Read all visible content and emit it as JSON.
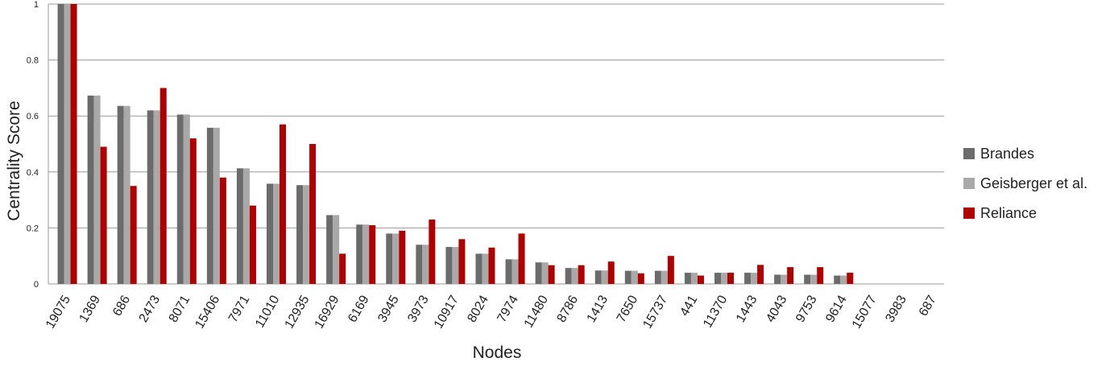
{
  "chart_data": {
    "type": "bar",
    "x_label": "Nodes",
    "y_label": "Centrality  Score",
    "categories": [
      "19075",
      "1369",
      "686",
      "2473",
      "8071",
      "15406",
      "7971",
      "11010",
      "12935",
      "16929",
      "6169",
      "3945",
      "3973",
      "10917",
      "8024",
      "7974",
      "11480",
      "8786",
      "1413",
      "7650",
      "15737",
      "441",
      "11370",
      "1443",
      "4043",
      "9753",
      "9614",
      "15077",
      "3983",
      "687"
    ],
    "series": [
      {
        "name": "Brandes",
        "color": "#6b6b6b",
        "values": [
          1,
          0.673,
          0.636,
          0.62,
          0.605,
          0.558,
          0.413,
          0.358,
          0.353,
          0.246,
          0.212,
          0.18,
          0.14,
          0.132,
          0.108,
          0.088,
          0.077,
          0.057,
          0.048,
          0.047,
          0.047,
          0.04,
          0.04,
          0.04,
          0.033,
          0.033,
          0.03,
          0,
          0,
          0
        ]
      },
      {
        "name": "Geisberger et al.",
        "color": "#a9a9a9",
        "values": [
          1,
          0.673,
          0.636,
          0.62,
          0.605,
          0.558,
          0.413,
          0.358,
          0.353,
          0.246,
          0.212,
          0.18,
          0.14,
          0.132,
          0.108,
          0.088,
          0.077,
          0.057,
          0.048,
          0.047,
          0.047,
          0.04,
          0.04,
          0.04,
          0.033,
          0.033,
          0.03,
          0,
          0,
          0
        ]
      },
      {
        "name": "Reliance",
        "color": "#b00000",
        "values": [
          1,
          0.49,
          0.35,
          0.7,
          0.52,
          0.38,
          0.28,
          0.57,
          0.5,
          0.108,
          0.21,
          0.19,
          0.23,
          0.16,
          0.13,
          0.18,
          0.067,
          0.067,
          0.08,
          0.038,
          0.1,
          0.03,
          0.04,
          0.068,
          0.06,
          0.06,
          0.04,
          0,
          0,
          0
        ]
      }
    ],
    "ylim": [
      0,
      1
    ],
    "yticks": [
      0,
      0.2,
      0.4,
      0.6,
      0.8,
      1
    ],
    "grid": true,
    "legend": "right"
  }
}
